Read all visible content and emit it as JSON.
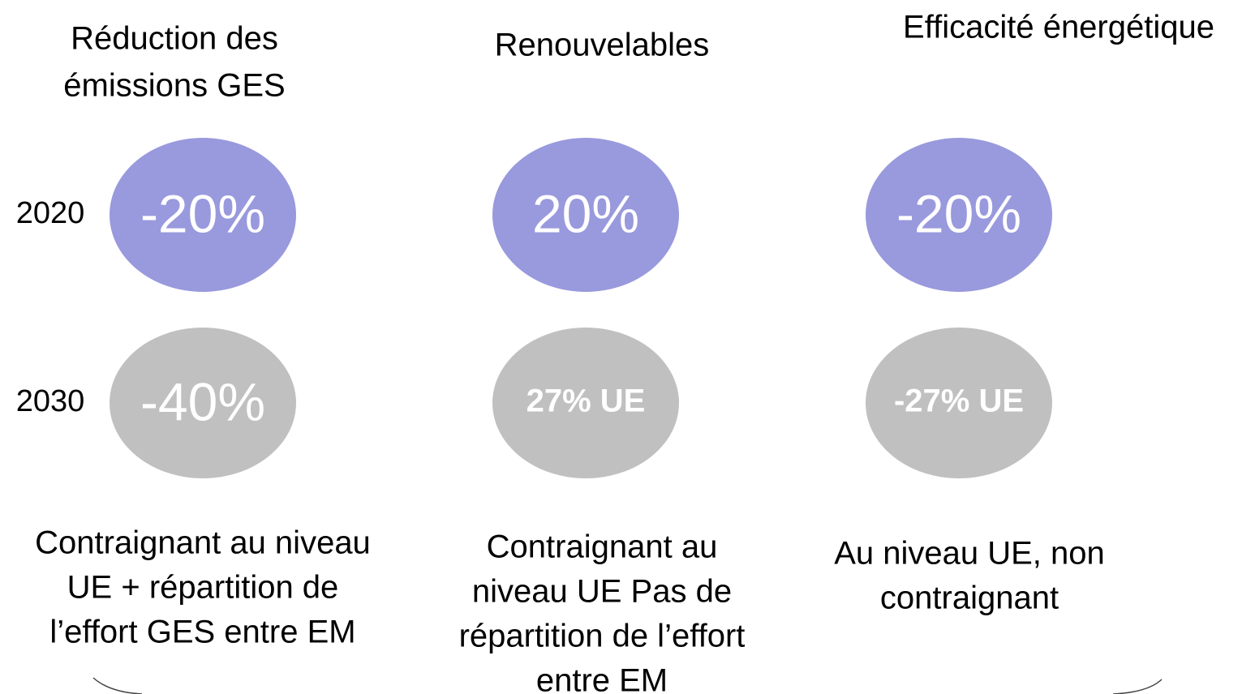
{
  "row_labels": [
    "2020",
    "2030"
  ],
  "columns": [
    {
      "title": [
        "Réduction des",
        "émissions GES"
      ],
      "targets": [
        "-20%",
        "-40%"
      ],
      "description": [
        "Contraignant au niveau",
        "UE + répartition de",
        "l’effort GES entre EM"
      ]
    },
    {
      "title": [
        "Renouvelables"
      ],
      "targets": [
        "20%",
        "27% UE"
      ],
      "description": [
        "Contraignant au",
        "niveau UE Pas de",
        "répartition de l’effort",
        "entre EM"
      ]
    },
    {
      "title": [
        "Efficacité énergétique"
      ],
      "targets": [
        "-20%",
        "-27% UE"
      ],
      "description": [
        "Au niveau UE, non",
        "contraignant"
      ]
    }
  ]
}
